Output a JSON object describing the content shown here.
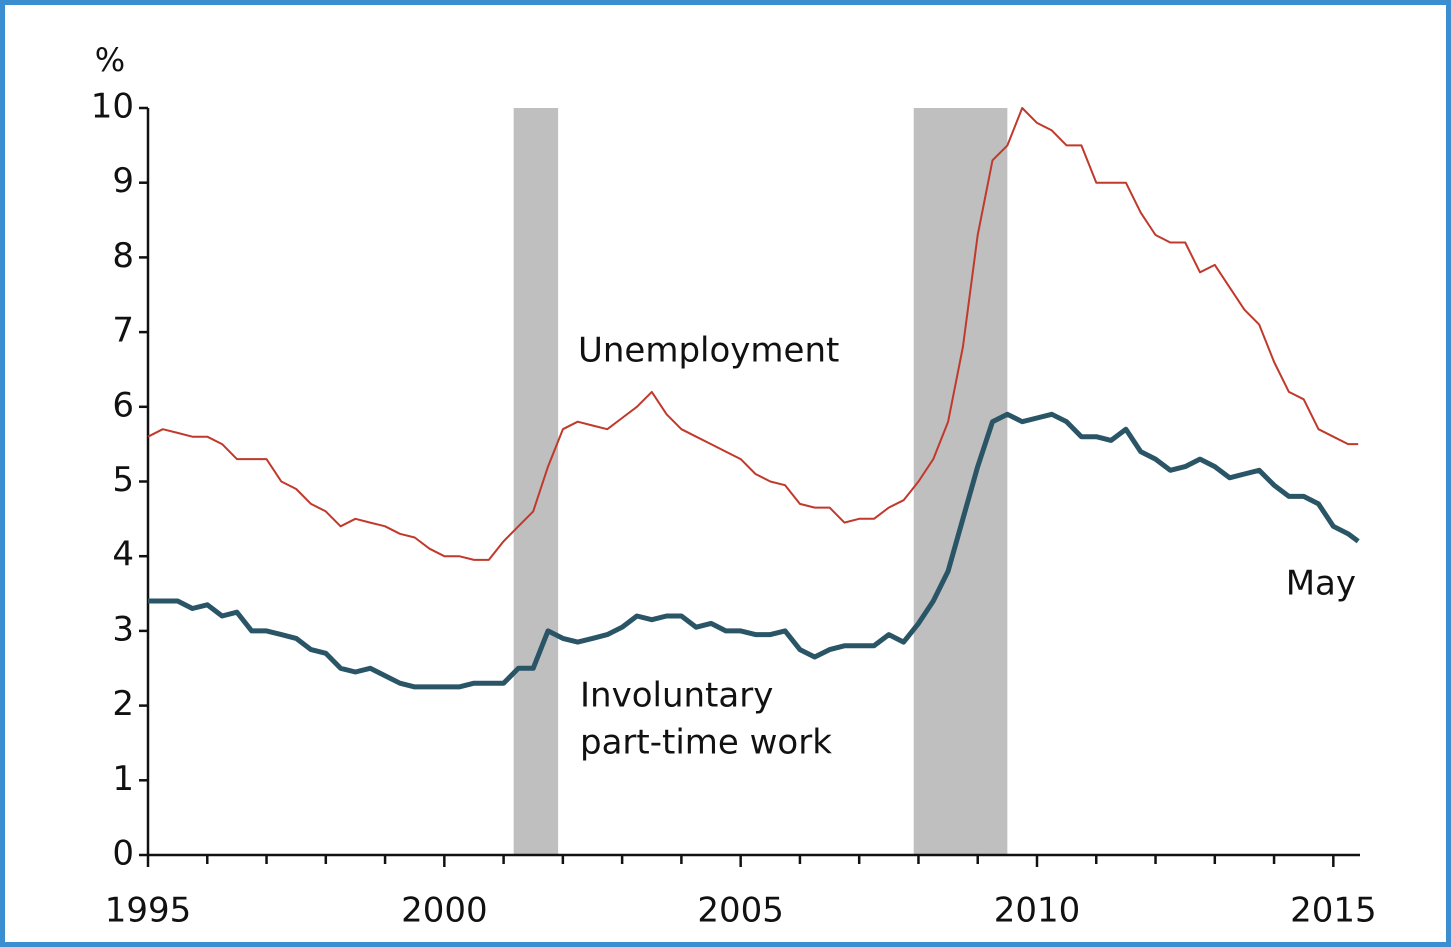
{
  "chart_data": {
    "type": "line",
    "y_unit_label": "%",
    "x": [
      1995.0,
      1995.25,
      1995.5,
      1995.75,
      1996.0,
      1996.25,
      1996.5,
      1996.75,
      1997.0,
      1997.25,
      1997.5,
      1997.75,
      1998.0,
      1998.25,
      1998.5,
      1998.75,
      1999.0,
      1999.25,
      1999.5,
      1999.75,
      2000.0,
      2000.25,
      2000.5,
      2000.75,
      2001.0,
      2001.25,
      2001.5,
      2001.75,
      2002.0,
      2002.25,
      2002.5,
      2002.75,
      2003.0,
      2003.25,
      2003.5,
      2003.75,
      2004.0,
      2004.25,
      2004.5,
      2004.75,
      2005.0,
      2005.25,
      2005.5,
      2005.75,
      2006.0,
      2006.25,
      2006.5,
      2006.75,
      2007.0,
      2007.25,
      2007.5,
      2007.75,
      2008.0,
      2008.25,
      2008.5,
      2008.75,
      2009.0,
      2009.25,
      2009.5,
      2009.75,
      2010.0,
      2010.25,
      2010.5,
      2010.75,
      2011.0,
      2011.25,
      2011.5,
      2011.75,
      2012.0,
      2012.25,
      2012.5,
      2012.75,
      2013.0,
      2013.25,
      2013.5,
      2013.75,
      2014.0,
      2014.25,
      2014.5,
      2014.75,
      2015.0,
      2015.25,
      2015.42
    ],
    "series": [
      {
        "name": "Unemployment",
        "color": "#c0392b",
        "width": 2,
        "values": [
          5.6,
          5.7,
          5.65,
          5.6,
          5.6,
          5.5,
          5.3,
          5.3,
          5.3,
          5.0,
          4.9,
          4.7,
          4.6,
          4.4,
          4.5,
          4.45,
          4.4,
          4.3,
          4.25,
          4.1,
          4.0,
          4.0,
          3.95,
          3.95,
          4.2,
          4.4,
          4.6,
          5.2,
          5.7,
          5.8,
          5.75,
          5.7,
          5.85,
          6.0,
          6.2,
          5.9,
          5.7,
          5.6,
          5.5,
          5.4,
          5.3,
          5.1,
          5.0,
          4.95,
          4.7,
          4.65,
          4.65,
          4.45,
          4.5,
          4.5,
          4.65,
          4.75,
          5.0,
          5.3,
          5.8,
          6.8,
          8.3,
          9.3,
          9.5,
          10.0,
          9.8,
          9.7,
          9.5,
          9.5,
          9.0,
          9.0,
          9.0,
          8.6,
          8.3,
          8.2,
          8.2,
          7.8,
          7.9,
          7.6,
          7.3,
          7.1,
          6.6,
          6.2,
          6.1,
          5.7,
          5.6,
          5.5,
          5.5
        ]
      },
      {
        "name": "Involuntary part-time work",
        "color": "#2a5566",
        "width": 5,
        "values": [
          3.4,
          3.4,
          3.4,
          3.3,
          3.35,
          3.2,
          3.25,
          3.0,
          3.0,
          2.95,
          2.9,
          2.75,
          2.7,
          2.5,
          2.45,
          2.5,
          2.4,
          2.3,
          2.25,
          2.25,
          2.25,
          2.25,
          2.3,
          2.3,
          2.3,
          2.5,
          2.5,
          3.0,
          2.9,
          2.85,
          2.9,
          2.95,
          3.05,
          3.2,
          3.15,
          3.2,
          3.2,
          3.05,
          3.1,
          3.0,
          3.0,
          2.95,
          2.95,
          3.0,
          2.75,
          2.65,
          2.75,
          2.8,
          2.8,
          2.8,
          2.95,
          2.85,
          3.1,
          3.4,
          3.8,
          4.5,
          5.2,
          5.8,
          5.9,
          5.8,
          5.85,
          5.9,
          5.8,
          5.6,
          5.6,
          5.55,
          5.7,
          5.4,
          5.3,
          5.15,
          5.2,
          5.3,
          5.2,
          5.05,
          5.1,
          5.15,
          4.95,
          4.8,
          4.8,
          4.7,
          4.4,
          4.3,
          4.2
        ]
      }
    ],
    "annotations": [
      {
        "lines": [
          "Unemployment"
        ],
        "color": "#c0392b"
      },
      {
        "lines": [
          "Involuntary",
          "part-time work"
        ],
        "color": "#2a5566"
      },
      {
        "lines": [
          "May"
        ],
        "color": "#111111"
      }
    ],
    "recessions": [
      [
        2001.17,
        2001.92
      ],
      [
        2007.92,
        2009.5
      ]
    ],
    "recession_color": "#bfbfbf",
    "xlim": [
      1995,
      2015.45
    ],
    "xticks": [
      1995,
      2000,
      2005,
      2010,
      2015
    ],
    "xminor_ticks": [
      1996,
      1997,
      1998,
      1999,
      2001,
      2002,
      2003,
      2004,
      2006,
      2007,
      2008,
      2009,
      2011,
      2012,
      2013,
      2014
    ],
    "ylim": [
      0,
      10
    ],
    "yticks": [
      0,
      1,
      2,
      3,
      4,
      5,
      6,
      7,
      8,
      9,
      10
    ],
    "grid": false
  }
}
